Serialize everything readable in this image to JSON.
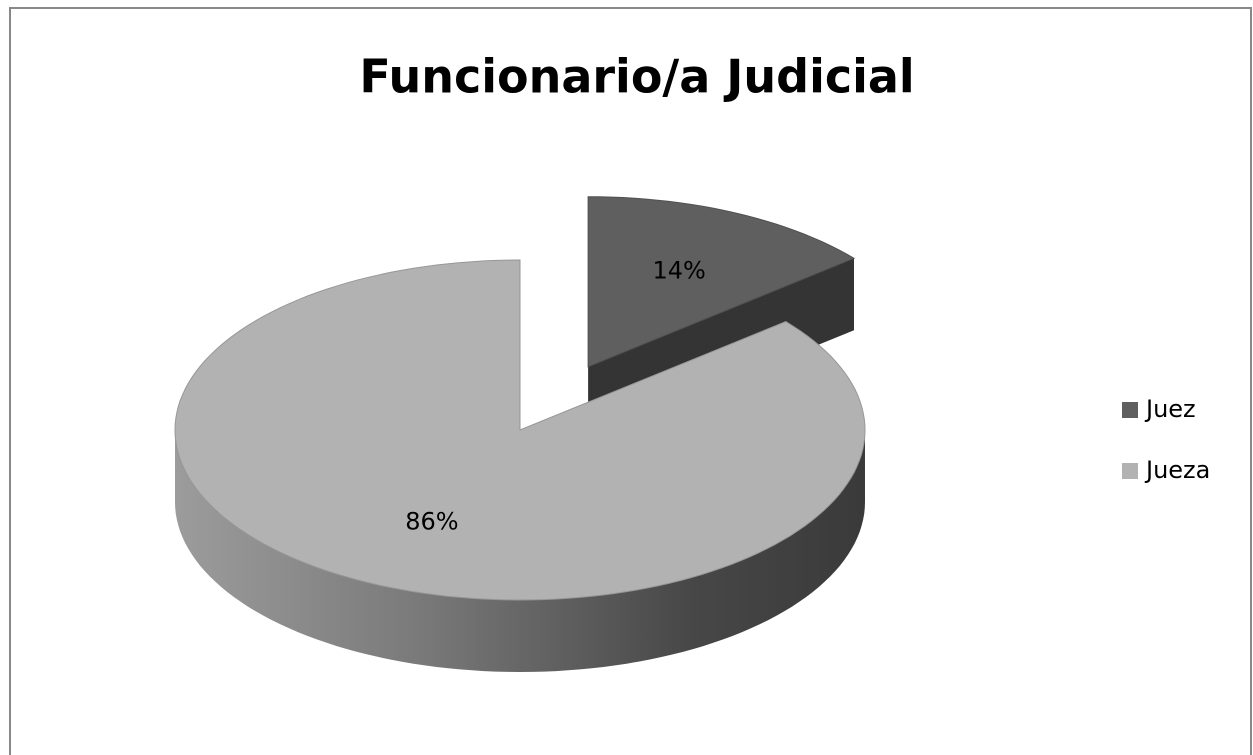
{
  "chart_data": {
    "type": "pie",
    "title": "Funcionario/a Judicial",
    "categories": [
      "Juez",
      "Jueza"
    ],
    "values": [
      14,
      86
    ],
    "value_labels": [
      "14%",
      "86%"
    ],
    "colors": [
      "#5f5f5f",
      "#b2b2b2"
    ],
    "explode": [
      true,
      false
    ],
    "legend": "right",
    "style": "3d"
  }
}
